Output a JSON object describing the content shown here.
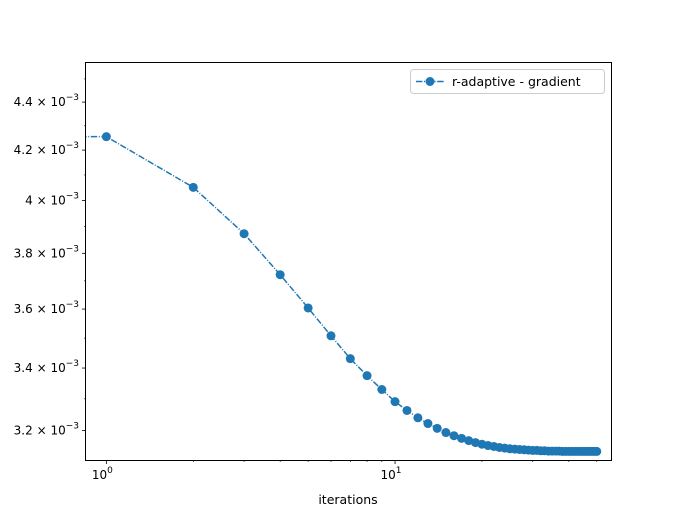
{
  "chart_data": {
    "type": "line",
    "title": "",
    "xlabel": "iterations",
    "ylabel": "",
    "xscale": "log",
    "yscale": "log",
    "xlim": [
      0.85,
      56
    ],
    "ylim": [
      0.00311,
      0.00457
    ],
    "x_ticks": [
      {
        "value": 1,
        "base": "10",
        "exp": "0"
      },
      {
        "value": 10,
        "base": "10",
        "exp": "1"
      }
    ],
    "y_ticks": [
      {
        "value": 0.0032,
        "mant": "3.2 × 10",
        "exp": "−3"
      },
      {
        "value": 0.0034,
        "mant": "3.4 × 10",
        "exp": "−3"
      },
      {
        "value": 0.0036,
        "mant": "3.6 × 10",
        "exp": "−3"
      },
      {
        "value": 0.0038,
        "mant": "3.8 × 10",
        "exp": "−3"
      },
      {
        "value": 0.004,
        "mant": "4 × 10",
        "exp": "−3"
      },
      {
        "value": 0.0042,
        "mant": "4.2 × 10",
        "exp": "−3"
      },
      {
        "value": 0.0044,
        "mant": "4.4 × 10",
        "exp": "−3"
      }
    ],
    "legend": {
      "position": "top-right",
      "entries": [
        "r-adaptive - gradient"
      ]
    },
    "series": [
      {
        "name": "r-adaptive - gradient",
        "color": "#1f77b4",
        "linestyle": "dashdot",
        "marker": "circle",
        "x": [
          0,
          1,
          2,
          3,
          4,
          5,
          6,
          7,
          8,
          9,
          10,
          11,
          12,
          13,
          14,
          15,
          16,
          17,
          18,
          19,
          20,
          21,
          22,
          23,
          24,
          25,
          26,
          27,
          28,
          29,
          30,
          31,
          32,
          33,
          34,
          35,
          36,
          37,
          38,
          39,
          40,
          41,
          42,
          43,
          44,
          45,
          46,
          47,
          48,
          49,
          50
        ],
        "y": [
          0.004255,
          0.004255,
          0.004051,
          0.003873,
          0.003722,
          0.003604,
          0.003508,
          0.003431,
          0.003375,
          0.00333,
          0.003291,
          0.003263,
          0.00324,
          0.003222,
          0.003207,
          0.003194,
          0.003184,
          0.003176,
          0.003169,
          0.003163,
          0.003158,
          0.003154,
          0.003151,
          0.003148,
          0.003146,
          0.003144,
          0.003143,
          0.003142,
          0.003141,
          0.00314,
          0.003139,
          0.003139,
          0.003138,
          0.003138,
          0.003137,
          0.003137,
          0.003137,
          0.003137,
          0.003136,
          0.003136,
          0.003136,
          0.003136,
          0.003136,
          0.003136,
          0.003136,
          0.003136,
          0.003136,
          0.003136,
          0.003136,
          0.003136,
          0.003136
        ]
      }
    ]
  }
}
